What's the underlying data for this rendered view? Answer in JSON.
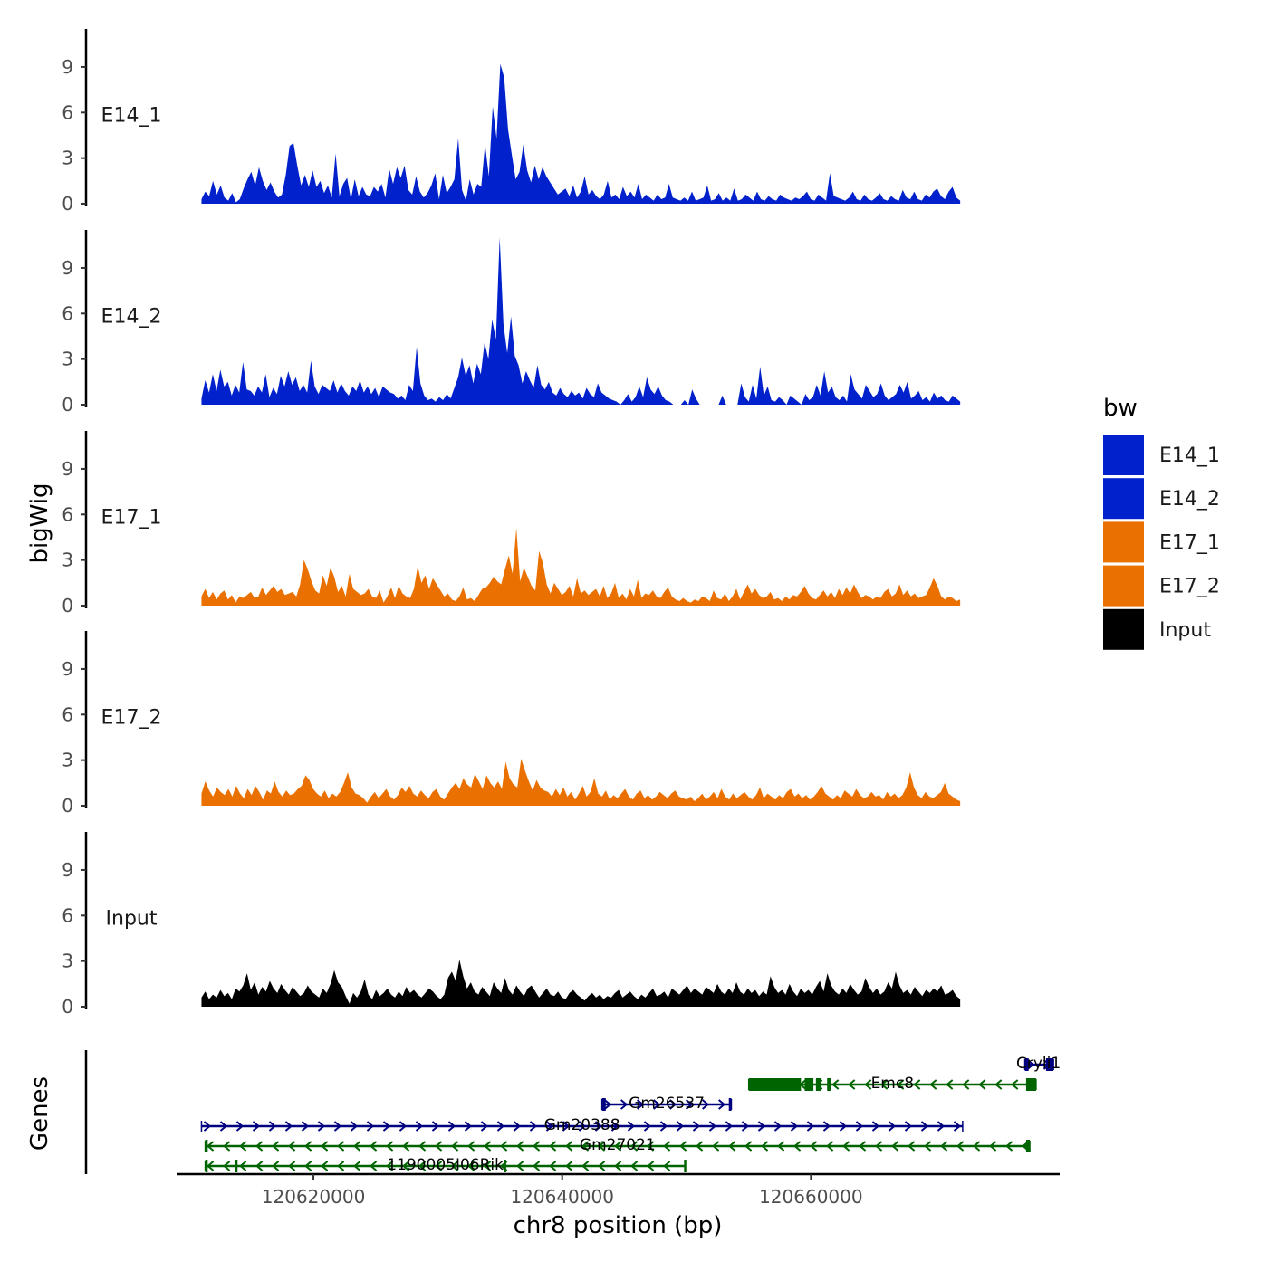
{
  "chart_data": {
    "type": "area",
    "title": "",
    "ylabel": "bigWig",
    "xlabel": "chr8 position (bp)",
    "genes_panel_label": "Genes",
    "xlim": [
      120609000,
      120680000
    ],
    "x_ticks": [
      {
        "value": 120620000,
        "label": "120620000"
      },
      {
        "value": 120640000,
        "label": "120640000"
      },
      {
        "value": 120660000,
        "label": "120660000"
      }
    ],
    "ylim": [
      0,
      11.5
    ],
    "y_ticks": [
      {
        "value": 0,
        "label": "0"
      },
      {
        "value": 3,
        "label": "3"
      },
      {
        "value": 6,
        "label": "6"
      },
      {
        "value": 9,
        "label": "9"
      }
    ],
    "x_start": 120611000,
    "x_end": 120672000,
    "tracks": [
      {
        "name": "E14_1",
        "color": "#0021cc",
        "values": [
          0.3,
          0.8,
          0.5,
          1.5,
          0.6,
          1.2,
          0.4,
          0.2,
          0.7,
          0.1,
          0.3,
          1.0,
          1.6,
          2.1,
          1.2,
          2.4,
          1.5,
          0.9,
          1.4,
          0.8,
          0.4,
          0.6,
          1.9,
          3.8,
          4.0,
          2.5,
          1.2,
          1.9,
          1.1,
          2.2,
          1.1,
          1.5,
          0.7,
          1.2,
          0.4,
          3.3,
          0.5,
          1.3,
          1.7,
          0.3,
          1.6,
          0.5,
          1.1,
          0.6,
          0.5,
          1.1,
          0.8,
          1.3,
          0.4,
          2.3,
          1.3,
          2.4,
          1.7,
          2.5,
          0.9,
          0.6,
          1.8,
          0.8,
          0.4,
          0.7,
          1.2,
          2.0,
          0.3,
          1.9,
          0.7,
          1.1,
          1.6,
          4.3,
          0.9,
          0.2,
          1.6,
          0.6,
          1.3,
          1.1,
          3.9,
          1.8,
          6.4,
          4.3,
          9.2,
          8.3,
          4.9,
          3.2,
          1.6,
          2.1,
          3.9,
          2.2,
          1.4,
          2.5,
          1.6,
          2.4,
          1.8,
          1.4,
          1.0,
          0.6,
          0.8,
          1.0,
          0.5,
          1.2,
          0.4,
          0.8,
          1.8,
          0.6,
          0.9,
          0.5,
          0.3,
          0.6,
          1.5,
          0.4,
          0.6,
          0.3,
          1.1,
          0.5,
          0.8,
          0.4,
          1.3,
          0.3,
          0.6,
          0.4,
          0.2,
          0.6,
          0.3,
          0.4,
          1.3,
          0.4,
          0.3,
          0.2,
          0.4,
          0.2,
          0.8,
          0.2,
          0.3,
          0.4,
          1.2,
          0.2,
          0.3,
          0.7,
          0.2,
          0.4,
          0.2,
          1.0,
          0.2,
          0.3,
          0.6,
          0.4,
          0.2,
          0.8,
          0.3,
          0.2,
          0.5,
          0.3,
          0.2,
          0.6,
          0.4,
          0.3,
          0.2,
          0.4,
          0.3,
          0.5,
          0.8,
          0.3,
          0.2,
          0.6,
          0.4,
          0.2,
          2.0,
          0.5,
          0.4,
          0.3,
          0.2,
          0.4,
          0.8,
          0.3,
          0.2,
          0.6,
          0.3,
          0.2,
          0.4,
          0.7,
          0.3,
          0.2,
          0.5,
          0.3,
          0.2,
          0.9,
          0.4,
          0.3,
          0.8,
          0.3,
          0.2,
          0.6,
          0.4,
          0.8,
          1.0,
          0.5,
          0.3,
          0.8,
          1.1,
          0.4,
          0.2
        ]
      },
      {
        "name": "E14_2",
        "color": "#0021cc",
        "values": [
          0.4,
          1.6,
          0.8,
          2.0,
          0.9,
          2.3,
          1.2,
          1.5,
          0.6,
          1.3,
          0.8,
          2.8,
          1.0,
          0.9,
          0.6,
          1.2,
          0.8,
          2.0,
          0.5,
          1.1,
          0.7,
          1.9,
          1.2,
          2.2,
          1.3,
          1.8,
          0.9,
          1.3,
          0.8,
          2.9,
          1.2,
          0.7,
          1.3,
          1.1,
          0.9,
          1.6,
          0.8,
          1.4,
          0.9,
          0.6,
          1.2,
          0.9,
          1.6,
          0.8,
          1.2,
          0.7,
          1.1,
          0.5,
          1.2,
          1.0,
          0.8,
          0.7,
          0.4,
          0.6,
          0.3,
          1.3,
          0.9,
          3.8,
          1.4,
          0.6,
          0.3,
          0.4,
          0.2,
          0.5,
          0.3,
          0.7,
          0.4,
          1.1,
          1.8,
          3.1,
          1.9,
          2.6,
          1.4,
          2.7,
          2.0,
          4.1,
          3.0,
          5.6,
          4.3,
          11.0,
          5.3,
          3.4,
          5.8,
          3.2,
          2.6,
          1.4,
          2.2,
          1.6,
          1.1,
          2.6,
          1.3,
          1.0,
          1.5,
          0.8,
          0.6,
          1.1,
          0.7,
          0.5,
          0.9,
          0.6,
          0.8,
          0.4,
          1.1,
          0.7,
          0.5,
          1.4,
          0.8,
          0.6,
          0.4,
          0.3,
          0.2,
          0.0,
          0.3,
          0.7,
          0.2,
          0.5,
          1.2,
          0.5,
          1.8,
          1.0,
          0.7,
          1.2,
          0.6,
          0.3,
          0.2,
          0.0,
          0.0,
          0.0,
          0.3,
          0.0,
          1.0,
          0.4,
          0.0,
          0.0,
          0.0,
          0.0,
          0.0,
          0.0,
          0.6,
          0.0,
          0.0,
          0.0,
          0.0,
          1.4,
          0.5,
          0.2,
          1.3,
          0.4,
          2.5,
          0.6,
          1.2,
          0.3,
          0.2,
          0.5,
          0.3,
          0.0,
          0.6,
          0.4,
          0.2,
          0.0,
          0.7,
          0.3,
          0.5,
          1.3,
          0.6,
          2.2,
          0.8,
          1.2,
          0.5,
          0.3,
          0.6,
          0.2,
          2.0,
          1.0,
          0.7,
          0.4,
          1.3,
          0.9,
          0.5,
          0.7,
          1.4,
          0.6,
          0.3,
          0.5,
          0.7,
          1.3,
          0.8,
          1.5,
          0.4,
          0.6,
          0.9,
          0.3,
          0.5,
          0.2,
          0.8,
          0.4,
          0.6,
          0.3,
          0.2,
          0.6,
          0.4,
          0.2
        ]
      },
      {
        "name": "E17_1",
        "color": "#ea7000",
        "values": [
          0.6,
          1.1,
          0.5,
          0.9,
          0.4,
          0.8,
          1.0,
          0.4,
          0.7,
          0.2,
          0.6,
          0.5,
          0.7,
          0.9,
          0.5,
          0.6,
          1.2,
          0.7,
          1.0,
          1.3,
          0.9,
          1.1,
          0.7,
          0.8,
          0.9,
          0.6,
          1.4,
          3.0,
          2.4,
          1.6,
          1.0,
          0.8,
          2.0,
          1.3,
          2.5,
          1.9,
          0.9,
          1.3,
          0.6,
          2.1,
          1.1,
          0.9,
          0.7,
          0.8,
          1.1,
          0.6,
          0.5,
          1.0,
          0.2,
          0.6,
          1.2,
          0.5,
          1.3,
          0.8,
          0.6,
          0.5,
          1.1,
          2.6,
          1.5,
          2.0,
          1.1,
          1.8,
          1.4,
          1.0,
          0.6,
          0.8,
          0.4,
          0.3,
          0.6,
          1.2,
          0.4,
          0.5,
          0.3,
          0.7,
          1.1,
          1.2,
          1.5,
          1.9,
          1.6,
          1.4,
          2.4,
          3.3,
          2.1,
          5.1,
          1.6,
          2.5,
          1.9,
          1.3,
          1.0,
          3.6,
          2.8,
          1.4,
          0.8,
          1.5,
          1.1,
          0.7,
          0.9,
          1.3,
          0.6,
          1.8,
          0.8,
          1.0,
          0.7,
          0.9,
          1.1,
          0.6,
          1.3,
          0.5,
          0.8,
          1.5,
          0.5,
          0.8,
          0.4,
          1.1,
          0.6,
          1.7,
          0.5,
          0.8,
          0.7,
          1.0,
          0.6,
          0.5,
          0.9,
          1.2,
          0.6,
          0.4,
          0.3,
          0.5,
          0.3,
          0.2,
          0.4,
          0.3,
          0.6,
          0.5,
          0.3,
          1.0,
          0.5,
          0.4,
          0.8,
          0.3,
          0.6,
          1.1,
          0.4,
          0.9,
          1.4,
          0.8,
          1.1,
          0.7,
          0.5,
          0.6,
          0.9,
          0.4,
          0.5,
          0.3,
          0.6,
          0.4,
          0.7,
          0.6,
          0.9,
          1.3,
          0.8,
          0.5,
          0.4,
          0.7,
          1.0,
          0.6,
          0.9,
          0.5,
          1.1,
          0.7,
          1.2,
          0.8,
          1.4,
          0.9,
          0.5,
          0.7,
          0.6,
          0.4,
          0.6,
          0.5,
          0.9,
          1.1,
          0.6,
          0.8,
          1.4,
          0.7,
          1.0,
          0.6,
          0.8,
          0.5,
          0.6,
          0.7,
          1.2,
          1.8,
          1.3,
          0.6,
          0.4,
          0.6,
          0.5,
          0.3,
          0.4
        ]
      },
      {
        "name": "E17_2",
        "color": "#ea7000",
        "values": [
          0.8,
          1.6,
          1.0,
          0.6,
          1.2,
          0.9,
          0.7,
          1.1,
          0.6,
          1.3,
          0.8,
          0.5,
          1.1,
          0.7,
          1.3,
          0.9,
          0.4,
          1.0,
          0.8,
          1.6,
          0.9,
          0.6,
          1.0,
          0.7,
          0.8,
          1.1,
          1.3,
          2.0,
          1.7,
          1.1,
          0.8,
          0.6,
          1.0,
          0.5,
          0.8,
          0.6,
          0.9,
          1.5,
          2.2,
          1.2,
          0.8,
          0.7,
          0.5,
          0.2,
          0.6,
          0.9,
          0.5,
          0.8,
          1.1,
          0.6,
          0.4,
          0.7,
          1.2,
          0.9,
          1.3,
          0.8,
          0.6,
          1.0,
          0.7,
          0.5,
          0.9,
          1.1,
          0.6,
          0.4,
          0.8,
          1.2,
          1.5,
          1.1,
          1.8,
          1.4,
          1.2,
          2.1,
          1.6,
          1.1,
          2.0,
          1.5,
          1.2,
          1.6,
          1.1,
          2.9,
          1.8,
          1.4,
          1.2,
          3.1,
          2.3,
          1.6,
          1.0,
          1.7,
          1.2,
          1.0,
          0.9,
          0.6,
          1.1,
          0.7,
          1.2,
          0.6,
          0.9,
          0.4,
          0.8,
          1.3,
          0.6,
          0.9,
          1.8,
          0.8,
          0.6,
          1.0,
          0.4,
          0.7,
          0.5,
          0.8,
          1.1,
          0.6,
          0.4,
          0.8,
          1.0,
          0.5,
          0.7,
          0.4,
          0.6,
          0.9,
          0.7,
          0.5,
          0.8,
          1.0,
          0.6,
          0.5,
          0.4,
          0.6,
          0.3,
          0.5,
          0.8,
          0.4,
          0.6,
          0.9,
          0.5,
          1.1,
          0.6,
          0.4,
          0.8,
          0.5,
          0.7,
          0.9,
          0.6,
          0.4,
          0.7,
          1.2,
          0.5,
          0.8,
          0.6,
          0.4,
          0.7,
          0.5,
          0.9,
          1.1,
          0.6,
          0.8,
          0.5,
          0.7,
          0.4,
          0.6,
          0.9,
          1.3,
          0.8,
          0.6,
          0.4,
          0.7,
          0.5,
          1.0,
          0.8,
          0.6,
          1.1,
          0.7,
          0.5,
          0.6,
          0.9,
          0.6,
          0.7,
          0.4,
          0.9,
          0.6,
          0.8,
          0.5,
          0.7,
          1.2,
          2.2,
          1.2,
          0.7,
          0.5,
          0.9,
          0.6,
          0.5,
          0.7,
          0.9,
          1.5,
          0.8,
          0.6,
          0.4,
          0.3
        ]
      },
      {
        "name": "Input",
        "color": "#000000",
        "values": [
          0.6,
          1.0,
          0.5,
          0.8,
          0.6,
          1.1,
          0.7,
          0.9,
          0.5,
          1.2,
          1.0,
          1.4,
          2.2,
          1.1,
          1.6,
          0.8,
          1.3,
          1.0,
          1.7,
          1.2,
          0.9,
          1.5,
          1.1,
          0.8,
          1.3,
          1.0,
          0.7,
          0.9,
          1.4,
          1.0,
          0.8,
          0.6,
          1.2,
          0.9,
          1.5,
          2.4,
          1.6,
          1.3,
          0.7,
          0.2,
          0.9,
          0.6,
          1.0,
          1.8,
          0.8,
          0.5,
          1.1,
          0.7,
          0.9,
          1.2,
          0.8,
          0.6,
          1.0,
          0.7,
          1.3,
          0.9,
          1.1,
          0.8,
          0.6,
          0.9,
          1.2,
          1.0,
          0.7,
          0.5,
          0.8,
          1.9,
          2.3,
          1.7,
          3.1,
          2.0,
          1.2,
          1.6,
          1.0,
          0.8,
          1.3,
          1.0,
          0.7,
          1.6,
          1.2,
          0.9,
          1.9,
          1.1,
          0.8,
          1.4,
          1.0,
          0.7,
          1.2,
          1.4,
          1.0,
          0.6,
          0.9,
          1.2,
          0.8,
          0.7,
          1.0,
          0.6,
          0.5,
          0.9,
          1.1,
          0.8,
          0.6,
          0.4,
          0.7,
          0.9,
          0.6,
          0.8,
          0.5,
          0.7,
          0.6,
          0.9,
          1.1,
          0.6,
          0.8,
          1.0,
          0.7,
          0.5,
          0.8,
          0.6,
          0.9,
          1.2,
          0.7,
          0.8,
          1.0,
          0.6,
          1.2,
          1.0,
          0.8,
          1.1,
          1.4,
          0.9,
          1.2,
          1.0,
          0.8,
          1.3,
          1.1,
          0.9,
          1.5,
          1.0,
          0.8,
          1.2,
          0.9,
          1.6,
          1.0,
          0.8,
          1.2,
          0.9,
          1.1,
          0.7,
          1.0,
          0.8,
          2.0,
          1.3,
          0.9,
          1.1,
          0.8,
          1.5,
          1.0,
          0.7,
          1.2,
          0.9,
          1.1,
          0.8,
          1.3,
          1.7,
          1.0,
          2.2,
          1.4,
          1.0,
          0.8,
          1.2,
          0.9,
          1.5,
          1.1,
          0.8,
          1.0,
          1.9,
          1.3,
          0.9,
          1.2,
          0.8,
          1.0,
          1.6,
          1.2,
          2.3,
          1.4,
          0.9,
          1.1,
          0.8,
          1.3,
          1.0,
          0.7,
          1.1,
          0.9,
          1.2,
          1.0,
          1.4,
          0.8,
          0.9,
          1.1,
          0.7,
          0.5
        ]
      }
    ],
    "legend": {
      "title": "bw",
      "position": "right",
      "entries": [
        {
          "label": "E14_1",
          "color": "#0021cc"
        },
        {
          "label": "E14_2",
          "color": "#0021cc"
        },
        {
          "label": "E17_1",
          "color": "#ea7000"
        },
        {
          "label": "E17_2",
          "color": "#ea7000"
        },
        {
          "label": "Input",
          "color": "#000000"
        }
      ]
    },
    "genes": [
      {
        "name": "Cryli1",
        "start": 120677200,
        "end": 120679500,
        "strand": "+",
        "color": "#000080",
        "row": 0,
        "exons": [
          [
            120677200,
            120677500
          ],
          [
            120678900,
            120679500
          ]
        ]
      },
      {
        "name": "Emc8",
        "start": 120655000,
        "end": 120678100,
        "strand": "-",
        "color": "#006400",
        "row": 1,
        "exons": [
          [
            120655000,
            120659200
          ],
          [
            120659500,
            120660200
          ],
          [
            120660400,
            120660800
          ],
          [
            120661300,
            120661600
          ],
          [
            120677300,
            120678100
          ]
        ]
      },
      {
        "name": "Gm26537",
        "start": 120643200,
        "end": 120653600,
        "strand": "+",
        "color": "#000080",
        "row": 2,
        "exons": [
          [
            120643200,
            120643500
          ],
          [
            120653400,
            120653600
          ]
        ]
      },
      {
        "name": "Gm20388",
        "start": 120611000,
        "end": 120672200,
        "strand": "+",
        "color": "#000080",
        "row": 3,
        "exons": []
      },
      {
        "name": "Gm27021",
        "start": 120611300,
        "end": 120677600,
        "strand": "-",
        "color": "#006400",
        "row": 4,
        "exons": [
          [
            120611300,
            120611500
          ],
          [
            120677300,
            120677600
          ]
        ]
      },
      {
        "name": "1190005I06Rik",
        "start": 120611300,
        "end": 120649900,
        "strand": "-",
        "color": "#006400",
        "row": 5,
        "exons": [
          [
            120611300,
            120611500
          ],
          [
            120613700,
            120613900
          ],
          [
            120635300,
            120635500
          ],
          [
            120649800,
            120649900
          ]
        ]
      }
    ]
  }
}
